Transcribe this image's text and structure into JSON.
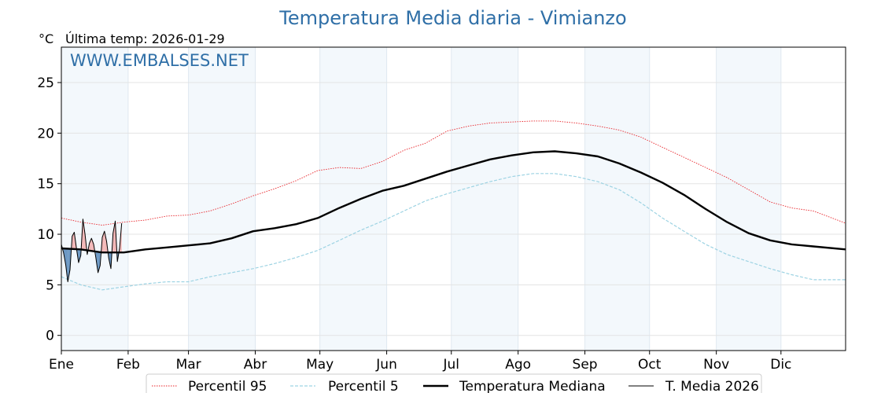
{
  "chart_data": {
    "type": "line",
    "title": "Temperatura Media diaria - Vimianzo",
    "unit_label": "°C",
    "subtitle": "Última temp: 2026-01-29",
    "watermark": "WWW.EMBALSES.NET",
    "x_range_days": [
      1,
      365
    ],
    "ylim": [
      -1.5,
      28.5
    ],
    "yticks": [
      0,
      5,
      10,
      15,
      20,
      25
    ],
    "months": [
      {
        "label": "Ene",
        "start_day": 1
      },
      {
        "label": "Feb",
        "start_day": 32
      },
      {
        "label": "Mar",
        "start_day": 60
      },
      {
        "label": "Abr",
        "start_day": 91
      },
      {
        "label": "May",
        "start_day": 121
      },
      {
        "label": "Jun",
        "start_day": 152
      },
      {
        "label": "Jul",
        "start_day": 182
      },
      {
        "label": "Ago",
        "start_day": 213
      },
      {
        "label": "Sep",
        "start_day": 244
      },
      {
        "label": "Oct",
        "start_day": 274
      },
      {
        "label": "Nov",
        "start_day": 305
      },
      {
        "label": "Dic",
        "start_day": 335
      }
    ],
    "grid": true,
    "legend_position": "bottom-center",
    "series": [
      {
        "name": "Percentil 95",
        "style": "dotted",
        "color": "#e8242a",
        "x": [
          1,
          10,
          20,
          30,
          40,
          50,
          60,
          70,
          80,
          90,
          100,
          110,
          120,
          130,
          140,
          150,
          160,
          170,
          180,
          190,
          200,
          210,
          220,
          230,
          240,
          250,
          260,
          270,
          280,
          290,
          300,
          310,
          320,
          330,
          340,
          350,
          365
        ],
        "y": [
          11.6,
          11.2,
          10.9,
          11.2,
          11.4,
          11.8,
          11.9,
          12.3,
          13.0,
          13.8,
          14.5,
          15.3,
          16.3,
          16.6,
          16.5,
          17.2,
          18.3,
          19.0,
          20.2,
          20.7,
          21.0,
          21.1,
          21.2,
          21.2,
          21.0,
          20.7,
          20.3,
          19.6,
          18.6,
          17.6,
          16.6,
          15.6,
          14.4,
          13.2,
          12.6,
          12.3,
          11.1
        ]
      },
      {
        "name": "Percentil 5",
        "style": "dashed",
        "color": "#9dd3e3",
        "x": [
          1,
          10,
          20,
          30,
          40,
          50,
          60,
          70,
          80,
          90,
          100,
          110,
          120,
          130,
          140,
          150,
          160,
          170,
          180,
          190,
          200,
          210,
          220,
          230,
          240,
          250,
          260,
          270,
          280,
          290,
          300,
          310,
          320,
          330,
          340,
          350,
          365
        ],
        "y": [
          5.8,
          5.0,
          4.5,
          4.8,
          5.1,
          5.3,
          5.3,
          5.8,
          6.2,
          6.6,
          7.1,
          7.7,
          8.4,
          9.4,
          10.4,
          11.3,
          12.3,
          13.3,
          14.0,
          14.6,
          15.2,
          15.7,
          16.0,
          16.0,
          15.7,
          15.2,
          14.4,
          13.1,
          11.6,
          10.3,
          9.0,
          8.0,
          7.3,
          6.6,
          6.0,
          5.5,
          5.5
        ]
      },
      {
        "name": "Temperatura Mediana",
        "style": "solid-thick",
        "color": "#000000",
        "x": [
          1,
          10,
          20,
          30,
          40,
          50,
          60,
          70,
          80,
          90,
          100,
          110,
          120,
          130,
          140,
          150,
          160,
          170,
          180,
          190,
          200,
          210,
          220,
          230,
          240,
          250,
          260,
          270,
          280,
          290,
          300,
          310,
          320,
          330,
          340,
          350,
          365
        ],
        "y": [
          8.6,
          8.5,
          8.2,
          8.2,
          8.5,
          8.7,
          8.9,
          9.1,
          9.6,
          10.3,
          10.6,
          11.0,
          11.6,
          12.6,
          13.5,
          14.3,
          14.8,
          15.5,
          16.2,
          16.8,
          17.4,
          17.8,
          18.1,
          18.2,
          18.0,
          17.7,
          17.0,
          16.1,
          15.1,
          13.9,
          12.5,
          11.2,
          10.1,
          9.4,
          9.0,
          8.8,
          8.5
        ]
      },
      {
        "name": "T. Media 2026",
        "style": "solid-thin",
        "color": "#000000",
        "x": [
          1,
          2,
          3,
          4,
          5,
          6,
          7,
          8,
          9,
          10,
          11,
          12,
          13,
          14,
          15,
          16,
          17,
          18,
          19,
          20,
          21,
          22,
          23,
          24,
          25,
          26,
          27,
          28,
          29
        ],
        "y": [
          9.0,
          8.2,
          7.0,
          5.3,
          6.5,
          9.8,
          10.2,
          8.6,
          7.2,
          7.9,
          11.5,
          10.0,
          8.0,
          9.1,
          9.6,
          9.0,
          7.7,
          6.2,
          6.9,
          9.7,
          10.3,
          9.3,
          7.6,
          6.6,
          10.1,
          11.3,
          7.3,
          8.6,
          11.1
        ]
      }
    ]
  },
  "legend": {
    "p95": "Percentil 95",
    "p5": "Percentil 5",
    "mediana": "Temperatura Mediana",
    "media2026": "T. Media 2026"
  }
}
